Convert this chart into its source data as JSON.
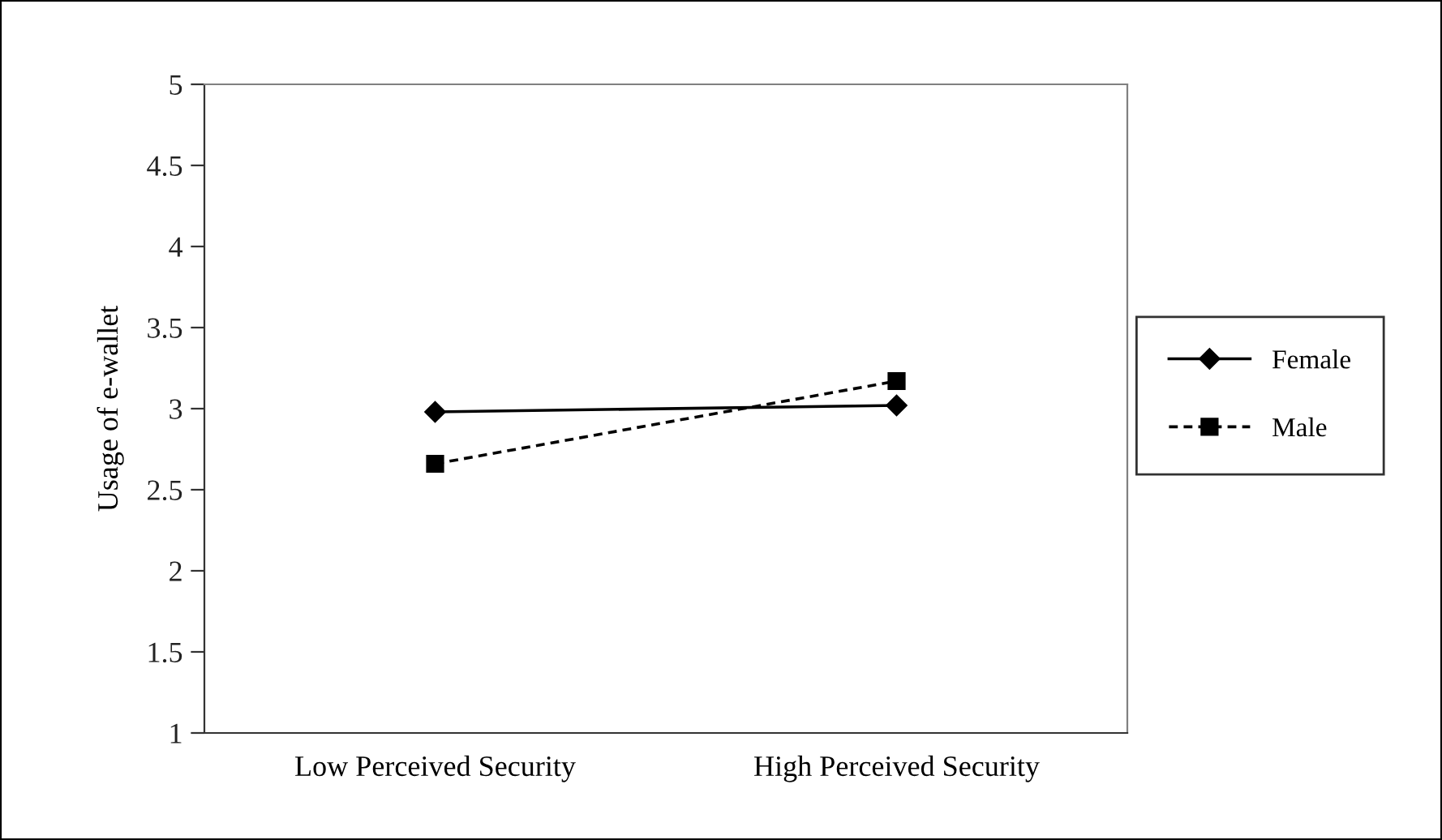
{
  "chart_data": {
    "type": "line",
    "ylabel": "Usage of e-wallet",
    "categories": [
      "Low Perceived Security",
      "High Perceived Security"
    ],
    "series": [
      {
        "name": "Female",
        "color": "#000000",
        "values": [
          2.98,
          3.02
        ],
        "marker": "diamond",
        "line_style": "solid"
      },
      {
        "name": "Male",
        "color": "#000000",
        "values": [
          2.66,
          3.17
        ],
        "marker": "square",
        "line_style": "dashed"
      }
    ],
    "ylim": [
      1,
      5
    ],
    "yticks": [
      1,
      1.5,
      2,
      2.5,
      3,
      3.5,
      4,
      4.5,
      5
    ],
    "grid": false,
    "legend": "right"
  }
}
